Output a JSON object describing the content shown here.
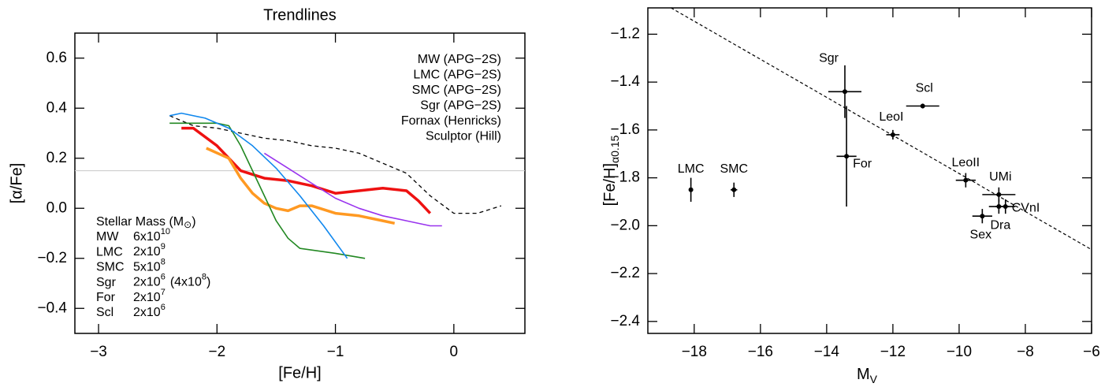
{
  "chart_data": [
    {
      "type": "line",
      "title": "Trendlines",
      "xlabel": "[Fe/H]",
      "ylabel": "[α/Fe]",
      "xlim": [
        -3.2,
        0.6
      ],
      "ylim": [
        -0.5,
        0.7
      ],
      "xticks": [
        {
          "value": -3,
          "label": "−3"
        },
        {
          "value": -2,
          "label": "−2"
        },
        {
          "value": -1,
          "label": "−1"
        },
        0
      ],
      "yticks": [
        {
          "value": -0.4,
          "label": "−0.4"
        },
        {
          "value": -0.2,
          "label": "−0.2"
        },
        {
          "value": 0,
          "label": "0.0"
        },
        0.2,
        0.4,
        0.6
      ],
      "hline": {
        "value": 0.15,
        "color": "#c8c8c8"
      },
      "series": [
        {
          "name": "MW (APG−2S)",
          "color": "#000000",
          "dashed": true,
          "width": 1.3,
          "x": [
            -2.4,
            -2.2,
            -2.0,
            -1.8,
            -1.6,
            -1.4,
            -1.2,
            -1.0,
            -0.8,
            -0.6,
            -0.4,
            -0.2,
            0.0,
            0.2,
            0.4
          ],
          "y": [
            0.37,
            0.33,
            0.32,
            0.3,
            0.28,
            0.27,
            0.25,
            0.24,
            0.22,
            0.18,
            0.14,
            0.05,
            -0.02,
            -0.02,
            0.01
          ]
        },
        {
          "name": "LMC (APG−2S)",
          "color": "#ee1111",
          "dashed": false,
          "width": 3.5,
          "x": [
            -2.3,
            -2.2,
            -2.0,
            -1.8,
            -1.6,
            -1.4,
            -1.2,
            -1.0,
            -0.8,
            -0.6,
            -0.4,
            -0.3,
            -0.2
          ],
          "y": [
            0.32,
            0.32,
            0.25,
            0.15,
            0.12,
            0.11,
            0.09,
            0.06,
            0.07,
            0.08,
            0.07,
            0.03,
            -0.02
          ]
        },
        {
          "name": "SMC (APG−2S)",
          "color": "#ff9922",
          "dashed": false,
          "width": 3.5,
          "x": [
            -2.09,
            -1.9,
            -1.8,
            -1.7,
            -1.6,
            -1.5,
            -1.4,
            -1.3,
            -1.2,
            -1.0,
            -0.8,
            -0.6,
            -0.5
          ],
          "y": [
            0.24,
            0.2,
            0.12,
            0.06,
            0.02,
            0.0,
            -0.01,
            0.01,
            0.01,
            -0.02,
            -0.03,
            -0.05,
            -0.06
          ]
        },
        {
          "name": "Sgr (APG−2S)",
          "color": "#9933ee",
          "dashed": false,
          "width": 1.6,
          "x": [
            -1.6,
            -1.4,
            -1.2,
            -1.0,
            -0.8,
            -0.6,
            -0.4,
            -0.2,
            -0.1
          ],
          "y": [
            0.22,
            0.16,
            0.1,
            0.04,
            0.0,
            -0.03,
            -0.05,
            -0.07,
            -0.07
          ]
        },
        {
          "name": "Fornax (Henricks)",
          "color": "#228822",
          "dashed": false,
          "width": 1.6,
          "x": [
            -2.4,
            -2.0,
            -1.9,
            -1.8,
            -1.7,
            -1.6,
            -1.5,
            -1.4,
            -1.3,
            -1.0,
            -0.75
          ],
          "y": [
            0.34,
            0.34,
            0.33,
            0.25,
            0.15,
            0.05,
            -0.05,
            -0.12,
            -0.16,
            -0.18,
            -0.2
          ]
        },
        {
          "name": "Sculptor (Hill)",
          "color": "#1188ee",
          "dashed": false,
          "width": 1.6,
          "x": [
            -2.4,
            -2.3,
            -2.1,
            -1.9,
            -1.7,
            -1.5,
            -1.3,
            -1.1,
            -0.9
          ],
          "y": [
            0.37,
            0.38,
            0.36,
            0.32,
            0.25,
            0.16,
            0.05,
            -0.07,
            -0.2
          ]
        }
      ],
      "mass_title": {
        "text": "Stellar Mass (M",
        "sub": "⊙",
        "end": ")"
      },
      "mass_table": [
        {
          "name": "MW",
          "mass": "6x10",
          "exp": "10",
          "color": "#000000"
        },
        {
          "name": "LMC",
          "mass": "2x10",
          "exp": "9",
          "color": "#ee1111"
        },
        {
          "name": "SMC",
          "mass": "5x10",
          "exp": "8",
          "color": "#ff9922"
        },
        {
          "name": "Sgr",
          "mass": "2x10",
          "exp": "6",
          "extra": "(4x10",
          "extra_exp": "8",
          "extra_end": ")",
          "color": "#9933ee"
        },
        {
          "name": "For",
          "mass": "2x10",
          "exp": "7",
          "color": "#228822"
        },
        {
          "name": "Scl",
          "mass": "2x10",
          "exp": "6",
          "color": "#1188ee"
        }
      ]
    },
    {
      "type": "scatter",
      "xlabel": {
        "text": "M",
        "sub": "V"
      },
      "ylabel": {
        "text": "[Fe/H]",
        "sub": "α0.15"
      },
      "xlim": [
        -19.4,
        -6
      ],
      "ylim": [
        -2.45,
        -1.09
      ],
      "xticks": [
        {
          "value": -18,
          "label": "−18"
        },
        {
          "value": -16,
          "label": "−16"
        },
        {
          "value": -14,
          "label": "−14"
        },
        {
          "value": -12,
          "label": "−12"
        },
        {
          "value": -10,
          "label": "−10"
        },
        {
          "value": -8,
          "label": "−8"
        },
        {
          "value": -6,
          "label": "−6"
        }
      ],
      "yticks": [
        {
          "value": -2.4,
          "label": "−2.4"
        },
        {
          "value": -2.2,
          "label": "−2.2"
        },
        {
          "value": -2.0,
          "label": "−2.0"
        },
        {
          "value": -1.8,
          "label": "−1.8"
        },
        {
          "value": -1.6,
          "label": "−1.6"
        },
        {
          "value": -1.4,
          "label": "−1.4"
        },
        {
          "value": -1.2,
          "label": "−1.2"
        }
      ],
      "fit": {
        "x": [
          -18.7,
          -6
        ],
        "y": [
          -1.09,
          -2.1
        ]
      },
      "points": [
        {
          "name": "LMC",
          "x": -18.1,
          "y": -1.85,
          "xerr": 0,
          "yerr": 0.05
        },
        {
          "name": "SMC",
          "x": -16.8,
          "y": -1.85,
          "xerr": 0.1,
          "yerr": 0.03
        },
        {
          "name": "Sgr",
          "x": -13.45,
          "y": -1.44,
          "xerr": 0.5,
          "yerr": 0.11
        },
        {
          "name": "For",
          "x": -13.4,
          "y": -1.71,
          "xerr": 0.3,
          "yerr": 0.21
        },
        {
          "name": "LeoI",
          "x": -12.0,
          "y": -1.62,
          "xerr": 0.2,
          "yerr": 0.02
        },
        {
          "name": "Scl",
          "x": -11.1,
          "y": -1.5,
          "xerr": 0.5,
          "yerr": 0.01
        },
        {
          "name": "LeoII",
          "x": -9.8,
          "y": -1.81,
          "xerr": 0.3,
          "yerr": 0.03
        },
        {
          "name": "UMi",
          "x": -8.8,
          "y": -1.87,
          "xerr": 0.5,
          "yerr": 0.03
        },
        {
          "name": "Dra",
          "x": -8.8,
          "y": -1.92,
          "xerr": 0.3,
          "yerr": 0.03
        },
        {
          "name": "CVnI",
          "x": -8.6,
          "y": -1.92,
          "xerr": 0.3,
          "yerr": 0.03
        },
        {
          "name": "Sex",
          "x": -9.3,
          "y": -1.96,
          "xerr": 0.3,
          "yerr": 0.03
        }
      ]
    }
  ]
}
